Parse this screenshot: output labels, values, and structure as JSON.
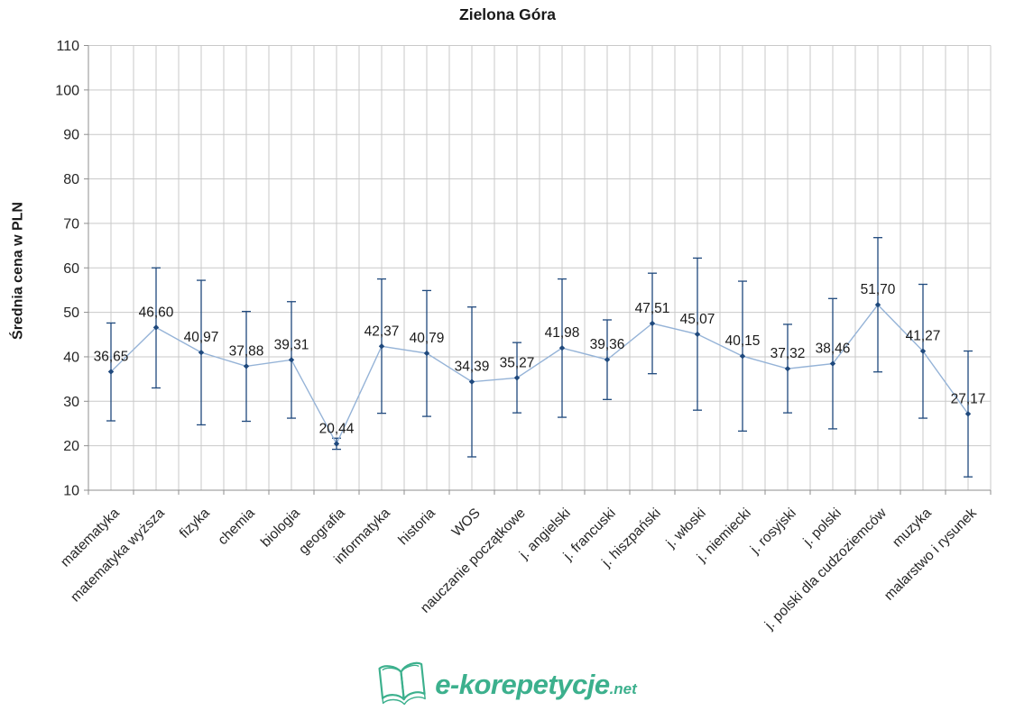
{
  "title": "Zielona Góra",
  "watermark": {
    "name": "e-korepetycje",
    "tld": ".net",
    "color": "#3cb08d",
    "icon": "open-book-icon"
  },
  "chart_data": {
    "type": "line",
    "title": "Zielona Góra",
    "xlabel": "",
    "ylabel": "Średnia cena w PLN",
    "ylim": [
      10,
      110
    ],
    "yticks": [
      10,
      20,
      30,
      40,
      50,
      60,
      70,
      80,
      90,
      100,
      110
    ],
    "grid": true,
    "legend": "none",
    "decimal_separator": ",",
    "categories": [
      "matematyka",
      "matematyka wyższa",
      "fizyka",
      "chemia",
      "biologia",
      "geografia",
      "informatyka",
      "historia",
      "WOS",
      "nauczanie początkowe",
      "j. angielski",
      "j. francuski",
      "j. hiszpański",
      "j. włoski",
      "j. niemiecki",
      "j. rosyjski",
      "j. polski",
      "j. polski dla cudzoziemców",
      "muzyka",
      "malarstwo i rysunek"
    ],
    "values": [
      36.65,
      46.6,
      40.97,
      37.88,
      39.31,
      20.44,
      42.37,
      40.79,
      34.39,
      35.27,
      41.98,
      39.36,
      47.51,
      45.07,
      40.15,
      37.32,
      38.46,
      51.7,
      41.27,
      27.17
    ],
    "value_labels": [
      "36,65",
      "46,60",
      "40,97",
      "37,88",
      "39,31",
      "20,44",
      "42,37",
      "40,79",
      "34,39",
      "35,27",
      "41,98",
      "39,36",
      "47,51",
      "45,07",
      "40,15",
      "37,32",
      "38,46",
      "51,70",
      "41,27",
      "27,17"
    ],
    "error_bars": {
      "low": [
        25.6,
        33.0,
        24.7,
        25.5,
        26.2,
        19.2,
        27.3,
        26.6,
        17.5,
        27.4,
        26.4,
        30.4,
        36.2,
        28.0,
        23.3,
        27.4,
        23.8,
        36.6,
        26.2,
        13.0
      ],
      "high": [
        47.6,
        60.0,
        57.2,
        50.2,
        52.4,
        21.7,
        57.5,
        54.9,
        51.2,
        43.2,
        57.5,
        48.3,
        58.8,
        62.2,
        57.0,
        47.3,
        53.1,
        66.8,
        56.3,
        41.3
      ]
    },
    "colors": {
      "line": "#95b3d7",
      "marker": "#1f497d",
      "error_bar": "#1f497d",
      "grid": "#c9c9c9",
      "axis": "#8f8f8f",
      "text": "#262626",
      "label_text": "#1a1a1a"
    }
  }
}
